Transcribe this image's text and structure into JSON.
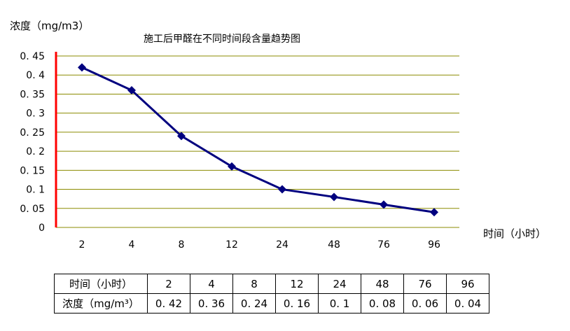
{
  "chart_data": {
    "type": "line",
    "title": "施工后甲醛在不同时间段含量趋势图",
    "ylabel": "浓度（mg/m3）",
    "xlabel": "时间（小时）",
    "categories": [
      "2",
      "4",
      "8",
      "12",
      "24",
      "48",
      "76",
      "96"
    ],
    "values": [
      0.42,
      0.36,
      0.24,
      0.16,
      0.1,
      0.08,
      0.06,
      0.04
    ],
    "ylim": [
      0,
      0.45
    ],
    "yticks": [
      "0",
      "0. 05",
      "0. 1",
      "0. 15",
      "0. 2",
      "0. 25",
      "0. 3",
      "0. 35",
      "0. 4",
      "0. 45"
    ],
    "grid": true,
    "colors": {
      "line": "#00007f",
      "marker": "#00007f",
      "grid": "#8b8b00",
      "axis": "#ff0000"
    }
  },
  "table": {
    "row_headers": [
      "时间（小时）",
      "浓度（mg/m³）"
    ],
    "time_values": [
      "2",
      "4",
      "8",
      "12",
      "24",
      "48",
      "76",
      "96"
    ],
    "conc_values": [
      "0. 42",
      "0. 36",
      "0. 24",
      "0. 16",
      "0. 1",
      "0. 08",
      "0. 06",
      "0. 04"
    ]
  }
}
